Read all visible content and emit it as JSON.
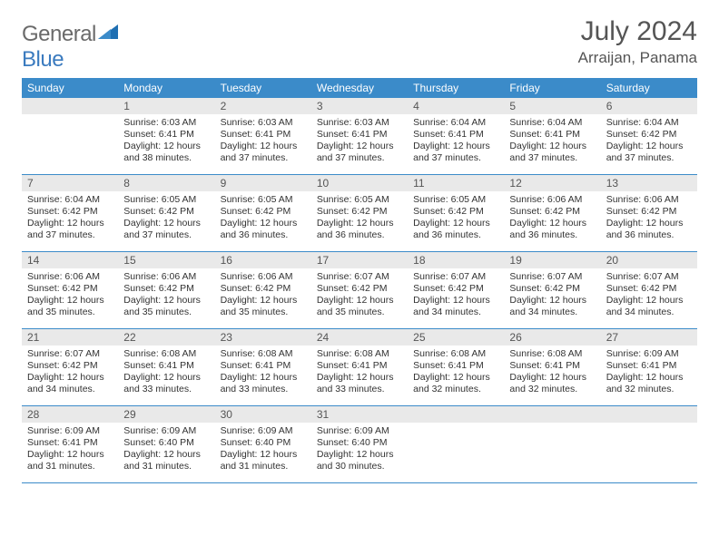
{
  "brand": {
    "part1": "General",
    "part2": "Blue"
  },
  "title": "July 2024",
  "location": "Arraijan, Panama",
  "colors": {
    "header_bar": "#3b8bc9",
    "row_divider": "#3b8bc9",
    "day_head_bg": "#e9e9e9",
    "logo_gray": "#6a6a6a",
    "logo_blue": "#3b7bbf",
    "text": "#333333",
    "background": "#ffffff"
  },
  "typography": {
    "month_title_fontsize": 30,
    "location_fontsize": 17,
    "dow_fontsize": 12,
    "daynum_fontsize": 12,
    "body_fontsize": 10.5
  },
  "days_of_week": [
    "Sunday",
    "Monday",
    "Tuesday",
    "Wednesday",
    "Thursday",
    "Friday",
    "Saturday"
  ],
  "weeks": [
    [
      {
        "n": "",
        "sunrise": "",
        "sunset": "",
        "daylight": ""
      },
      {
        "n": "1",
        "sunrise": "Sunrise: 6:03 AM",
        "sunset": "Sunset: 6:41 PM",
        "daylight": "Daylight: 12 hours and 38 minutes."
      },
      {
        "n": "2",
        "sunrise": "Sunrise: 6:03 AM",
        "sunset": "Sunset: 6:41 PM",
        "daylight": "Daylight: 12 hours and 37 minutes."
      },
      {
        "n": "3",
        "sunrise": "Sunrise: 6:03 AM",
        "sunset": "Sunset: 6:41 PM",
        "daylight": "Daylight: 12 hours and 37 minutes."
      },
      {
        "n": "4",
        "sunrise": "Sunrise: 6:04 AM",
        "sunset": "Sunset: 6:41 PM",
        "daylight": "Daylight: 12 hours and 37 minutes."
      },
      {
        "n": "5",
        "sunrise": "Sunrise: 6:04 AM",
        "sunset": "Sunset: 6:41 PM",
        "daylight": "Daylight: 12 hours and 37 minutes."
      },
      {
        "n": "6",
        "sunrise": "Sunrise: 6:04 AM",
        "sunset": "Sunset: 6:42 PM",
        "daylight": "Daylight: 12 hours and 37 minutes."
      }
    ],
    [
      {
        "n": "7",
        "sunrise": "Sunrise: 6:04 AM",
        "sunset": "Sunset: 6:42 PM",
        "daylight": "Daylight: 12 hours and 37 minutes."
      },
      {
        "n": "8",
        "sunrise": "Sunrise: 6:05 AM",
        "sunset": "Sunset: 6:42 PM",
        "daylight": "Daylight: 12 hours and 37 minutes."
      },
      {
        "n": "9",
        "sunrise": "Sunrise: 6:05 AM",
        "sunset": "Sunset: 6:42 PM",
        "daylight": "Daylight: 12 hours and 36 minutes."
      },
      {
        "n": "10",
        "sunrise": "Sunrise: 6:05 AM",
        "sunset": "Sunset: 6:42 PM",
        "daylight": "Daylight: 12 hours and 36 minutes."
      },
      {
        "n": "11",
        "sunrise": "Sunrise: 6:05 AM",
        "sunset": "Sunset: 6:42 PM",
        "daylight": "Daylight: 12 hours and 36 minutes."
      },
      {
        "n": "12",
        "sunrise": "Sunrise: 6:06 AM",
        "sunset": "Sunset: 6:42 PM",
        "daylight": "Daylight: 12 hours and 36 minutes."
      },
      {
        "n": "13",
        "sunrise": "Sunrise: 6:06 AM",
        "sunset": "Sunset: 6:42 PM",
        "daylight": "Daylight: 12 hours and 36 minutes."
      }
    ],
    [
      {
        "n": "14",
        "sunrise": "Sunrise: 6:06 AM",
        "sunset": "Sunset: 6:42 PM",
        "daylight": "Daylight: 12 hours and 35 minutes."
      },
      {
        "n": "15",
        "sunrise": "Sunrise: 6:06 AM",
        "sunset": "Sunset: 6:42 PM",
        "daylight": "Daylight: 12 hours and 35 minutes."
      },
      {
        "n": "16",
        "sunrise": "Sunrise: 6:06 AM",
        "sunset": "Sunset: 6:42 PM",
        "daylight": "Daylight: 12 hours and 35 minutes."
      },
      {
        "n": "17",
        "sunrise": "Sunrise: 6:07 AM",
        "sunset": "Sunset: 6:42 PM",
        "daylight": "Daylight: 12 hours and 35 minutes."
      },
      {
        "n": "18",
        "sunrise": "Sunrise: 6:07 AM",
        "sunset": "Sunset: 6:42 PM",
        "daylight": "Daylight: 12 hours and 34 minutes."
      },
      {
        "n": "19",
        "sunrise": "Sunrise: 6:07 AM",
        "sunset": "Sunset: 6:42 PM",
        "daylight": "Daylight: 12 hours and 34 minutes."
      },
      {
        "n": "20",
        "sunrise": "Sunrise: 6:07 AM",
        "sunset": "Sunset: 6:42 PM",
        "daylight": "Daylight: 12 hours and 34 minutes."
      }
    ],
    [
      {
        "n": "21",
        "sunrise": "Sunrise: 6:07 AM",
        "sunset": "Sunset: 6:42 PM",
        "daylight": "Daylight: 12 hours and 34 minutes."
      },
      {
        "n": "22",
        "sunrise": "Sunrise: 6:08 AM",
        "sunset": "Sunset: 6:41 PM",
        "daylight": "Daylight: 12 hours and 33 minutes."
      },
      {
        "n": "23",
        "sunrise": "Sunrise: 6:08 AM",
        "sunset": "Sunset: 6:41 PM",
        "daylight": "Daylight: 12 hours and 33 minutes."
      },
      {
        "n": "24",
        "sunrise": "Sunrise: 6:08 AM",
        "sunset": "Sunset: 6:41 PM",
        "daylight": "Daylight: 12 hours and 33 minutes."
      },
      {
        "n": "25",
        "sunrise": "Sunrise: 6:08 AM",
        "sunset": "Sunset: 6:41 PM",
        "daylight": "Daylight: 12 hours and 32 minutes."
      },
      {
        "n": "26",
        "sunrise": "Sunrise: 6:08 AM",
        "sunset": "Sunset: 6:41 PM",
        "daylight": "Daylight: 12 hours and 32 minutes."
      },
      {
        "n": "27",
        "sunrise": "Sunrise: 6:09 AM",
        "sunset": "Sunset: 6:41 PM",
        "daylight": "Daylight: 12 hours and 32 minutes."
      }
    ],
    [
      {
        "n": "28",
        "sunrise": "Sunrise: 6:09 AM",
        "sunset": "Sunset: 6:41 PM",
        "daylight": "Daylight: 12 hours and 31 minutes."
      },
      {
        "n": "29",
        "sunrise": "Sunrise: 6:09 AM",
        "sunset": "Sunset: 6:40 PM",
        "daylight": "Daylight: 12 hours and 31 minutes."
      },
      {
        "n": "30",
        "sunrise": "Sunrise: 6:09 AM",
        "sunset": "Sunset: 6:40 PM",
        "daylight": "Daylight: 12 hours and 31 minutes."
      },
      {
        "n": "31",
        "sunrise": "Sunrise: 6:09 AM",
        "sunset": "Sunset: 6:40 PM",
        "daylight": "Daylight: 12 hours and 30 minutes."
      },
      {
        "n": "",
        "sunrise": "",
        "sunset": "",
        "daylight": ""
      },
      {
        "n": "",
        "sunrise": "",
        "sunset": "",
        "daylight": ""
      },
      {
        "n": "",
        "sunrise": "",
        "sunset": "",
        "daylight": ""
      }
    ]
  ]
}
